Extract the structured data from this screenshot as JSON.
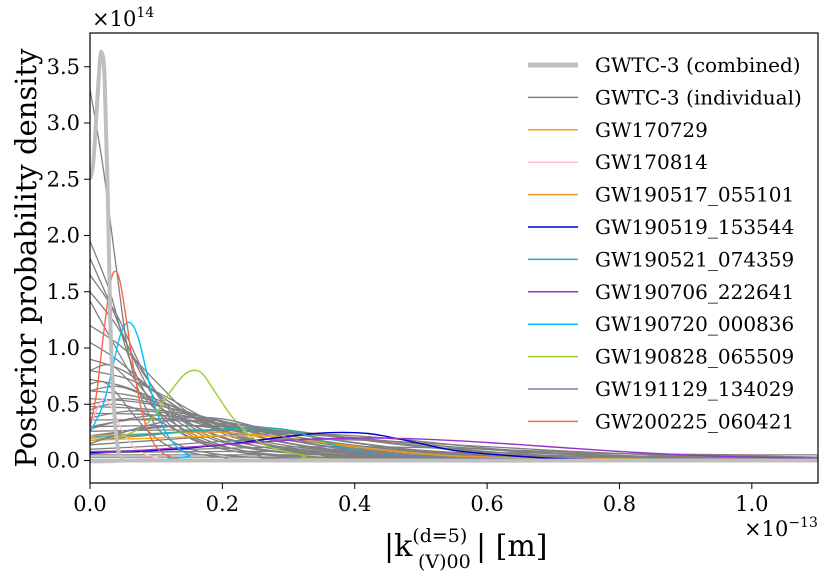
{
  "chart_data": {
    "type": "line",
    "xlabel": "|k",
    "xlabel_sup": "(d=5)",
    "xlabel_sub": "(V)00",
    "xlabel_unit": "| [m]",
    "ylabel": "Posterior probability density",
    "x_scale_label": "×10",
    "x_scale_exp": "−13",
    "y_scale_label": "×10",
    "y_scale_exp": "14",
    "xlim": [
      0,
      1.1
    ],
    "ylim": [
      -0.2,
      3.8
    ],
    "xticks": [
      0.0,
      0.2,
      0.4,
      0.6,
      0.8,
      1.0
    ],
    "xtick_labels": [
      "0.0",
      "0.2",
      "0.4",
      "0.6",
      "0.8",
      "1.0"
    ],
    "yticks": [
      0.0,
      0.5,
      1.0,
      1.5,
      2.0,
      2.5,
      3.0,
      3.5
    ],
    "ytick_labels": [
      "0.0",
      "0.5",
      "1.0",
      "1.5",
      "2.0",
      "2.5",
      "3.0",
      "3.5"
    ],
    "grid": false,
    "legend_position": "top-right",
    "legend": [
      {
        "name": "GWTC-3 (combined)",
        "color": "#bfbfbf",
        "width": 5
      },
      {
        "name": "GWTC-3 (individual)",
        "color": "#808080",
        "width": 1.5
      },
      {
        "name": "GW170729",
        "color": "#ffa500",
        "width": 1.5
      },
      {
        "name": "GW170814",
        "color": "#ffc0cb",
        "width": 1.5
      },
      {
        "name": "GW190517_055101",
        "color": "#e69a2e",
        "width": 1.5
      },
      {
        "name": "GW190519_153544",
        "color": "#0000cd",
        "width": 1.5
      },
      {
        "name": "GW190521_074359",
        "color": "#20b2aa",
        "width": 1.5
      },
      {
        "name": "GW190706_222641",
        "color": "#9932cc",
        "width": 1.5
      },
      {
        "name": "GW190720_000836",
        "color": "#00bfff",
        "width": 1.5
      },
      {
        "name": "GW190828_065509",
        "color": "#9acd32",
        "width": 1.5
      },
      {
        "name": "GW191129_134029",
        "color": "#7b7ba8",
        "width": 1.5
      },
      {
        "name": "GW200225_060421",
        "color": "#ff6347",
        "width": 1.5
      }
    ],
    "combined": {
      "color": "#bfbfbf",
      "x": [
        0,
        0.005,
        0.01,
        0.015,
        0.018,
        0.022,
        0.027,
        0.032,
        0.04,
        0.05,
        0.07,
        1.1
      ],
      "y": [
        2.5,
        2.65,
        3.1,
        3.55,
        3.62,
        3.4,
        2.3,
        1.0,
        0.2,
        0.01,
        0.0,
        0.0
      ]
    },
    "individual": [
      {
        "x": [
          0,
          0.02,
          0.04,
          0.06,
          0.09,
          0.13,
          0.2,
          0.3,
          0.45,
          0.6,
          1.1
        ],
        "y": [
          3.3,
          2.6,
          1.7,
          0.9,
          0.4,
          0.15,
          0.05,
          0.02,
          0.01,
          0.0,
          0.0
        ]
      },
      {
        "x": [
          0,
          0.03,
          0.06,
          0.1,
          0.15,
          0.22,
          0.32,
          0.45,
          0.6,
          1.1
        ],
        "y": [
          1.95,
          1.5,
          0.9,
          0.45,
          0.2,
          0.08,
          0.03,
          0.01,
          0.0,
          0.0
        ]
      },
      {
        "x": [
          0,
          0.03,
          0.07,
          0.11,
          0.16,
          0.24,
          0.35,
          0.5,
          1.1
        ],
        "y": [
          1.8,
          1.4,
          0.85,
          0.45,
          0.2,
          0.08,
          0.03,
          0.01,
          0.0
        ]
      },
      {
        "x": [
          0,
          0.04,
          0.08,
          0.12,
          0.18,
          0.26,
          0.38,
          0.55,
          1.1
        ],
        "y": [
          1.65,
          1.3,
          0.8,
          0.45,
          0.22,
          0.1,
          0.04,
          0.01,
          0.0
        ]
      },
      {
        "x": [
          0,
          0.04,
          0.08,
          0.13,
          0.2,
          0.3,
          0.42,
          0.6,
          1.1
        ],
        "y": [
          1.5,
          1.2,
          0.78,
          0.42,
          0.2,
          0.09,
          0.04,
          0.01,
          0.0
        ]
      },
      {
        "x": [
          0,
          0.03,
          0.07,
          0.12,
          0.18,
          0.26,
          0.38,
          0.55,
          1.1
        ],
        "y": [
          1.42,
          1.1,
          0.7,
          0.4,
          0.2,
          0.09,
          0.04,
          0.01,
          0.0
        ]
      },
      {
        "x": [
          0,
          0.05,
          0.1,
          0.15,
          0.22,
          0.3,
          0.42,
          0.6,
          1.1
        ],
        "y": [
          1.2,
          1.0,
          0.7,
          0.42,
          0.22,
          0.1,
          0.04,
          0.01,
          0.0
        ]
      },
      {
        "x": [
          0,
          0.04,
          0.09,
          0.15,
          0.22,
          0.32,
          0.45,
          0.6,
          1.1
        ],
        "y": [
          1.05,
          0.9,
          0.65,
          0.4,
          0.2,
          0.1,
          0.04,
          0.01,
          0.0
        ]
      },
      {
        "x": [
          0,
          0.05,
          0.1,
          0.16,
          0.24,
          0.34,
          0.48,
          0.65,
          1.1
        ],
        "y": [
          0.9,
          0.8,
          0.6,
          0.38,
          0.2,
          0.1,
          0.04,
          0.01,
          0.0
        ]
      },
      {
        "x": [
          0,
          0.06,
          0.12,
          0.18,
          0.26,
          0.36,
          0.5,
          0.7,
          1.1
        ],
        "y": [
          0.8,
          0.72,
          0.55,
          0.36,
          0.2,
          0.1,
          0.04,
          0.01,
          0.0
        ]
      },
      {
        "x": [
          0,
          0.05,
          0.11,
          0.18,
          0.27,
          0.38,
          0.52,
          0.7,
          1.1
        ],
        "y": [
          0.72,
          0.66,
          0.52,
          0.34,
          0.19,
          0.09,
          0.04,
          0.01,
          0.0
        ]
      },
      {
        "x": [
          0,
          0.06,
          0.13,
          0.2,
          0.3,
          0.42,
          0.56,
          0.75,
          1.1
        ],
        "y": [
          0.62,
          0.58,
          0.47,
          0.32,
          0.18,
          0.09,
          0.04,
          0.01,
          0.0
        ]
      },
      {
        "x": [
          0,
          0.07,
          0.14,
          0.22,
          0.32,
          0.44,
          0.6,
          0.8,
          1.1
        ],
        "y": [
          0.55,
          0.52,
          0.44,
          0.31,
          0.18,
          0.09,
          0.04,
          0.01,
          0.0
        ]
      },
      {
        "x": [
          0,
          0.08,
          0.16,
          0.24,
          0.34,
          0.46,
          0.62,
          0.82,
          1.1
        ],
        "y": [
          0.48,
          0.46,
          0.4,
          0.3,
          0.18,
          0.1,
          0.04,
          0.01,
          0.0
        ]
      },
      {
        "x": [
          0,
          0.08,
          0.17,
          0.26,
          0.36,
          0.48,
          0.64,
          0.85,
          1.1
        ],
        "y": [
          0.42,
          0.41,
          0.37,
          0.29,
          0.19,
          0.1,
          0.05,
          0.02,
          0.0
        ]
      },
      {
        "x": [
          0,
          0.1,
          0.2,
          0.3,
          0.4,
          0.52,
          0.68,
          0.88,
          1.1
        ],
        "y": [
          0.36,
          0.36,
          0.33,
          0.27,
          0.19,
          0.11,
          0.05,
          0.02,
          0.0
        ]
      },
      {
        "x": [
          0,
          0.1,
          0.2,
          0.3,
          0.42,
          0.55,
          0.7,
          0.9,
          1.1
        ],
        "y": [
          0.3,
          0.31,
          0.3,
          0.26,
          0.19,
          0.12,
          0.06,
          0.02,
          0.01
        ]
      },
      {
        "x": [
          0,
          0.1,
          0.2,
          0.3,
          0.42,
          0.55,
          0.72,
          0.9,
          1.1
        ],
        "y": [
          0.26,
          0.27,
          0.27,
          0.24,
          0.19,
          0.12,
          0.06,
          0.03,
          0.01
        ]
      },
      {
        "x": [
          0,
          0.03,
          0.06,
          0.1,
          0.15,
          0.22,
          0.3,
          0.45,
          1.1
        ],
        "y": [
          0.8,
          0.85,
          0.7,
          0.45,
          0.25,
          0.1,
          0.04,
          0.01,
          0.0
        ]
      },
      {
        "x": [
          0,
          0.04,
          0.08,
          0.12,
          0.18,
          0.26,
          0.36,
          0.5,
          1.1
        ],
        "y": [
          0.62,
          0.66,
          0.58,
          0.42,
          0.25,
          0.12,
          0.05,
          0.01,
          0.0
        ]
      },
      {
        "x": [
          0,
          0.05,
          0.1,
          0.15,
          0.2,
          0.28,
          0.38,
          0.55,
          1.1
        ],
        "y": [
          0.5,
          0.55,
          0.5,
          0.4,
          0.26,
          0.13,
          0.05,
          0.01,
          0.0
        ]
      },
      {
        "x": [
          0,
          0.06,
          0.12,
          0.18,
          0.25,
          0.34,
          0.46,
          0.62,
          1.1
        ],
        "y": [
          0.38,
          0.44,
          0.42,
          0.35,
          0.25,
          0.14,
          0.06,
          0.02,
          0.0
        ]
      },
      {
        "x": [
          0,
          0.06,
          0.13,
          0.2,
          0.28,
          0.38,
          0.5,
          0.68,
          1.1
        ],
        "y": [
          0.3,
          0.36,
          0.37,
          0.32,
          0.24,
          0.15,
          0.07,
          0.02,
          0.0
        ]
      },
      {
        "x": [
          0,
          0.08,
          0.15,
          0.22,
          0.3,
          0.4,
          0.52,
          0.7,
          1.1
        ],
        "y": [
          0.22,
          0.28,
          0.31,
          0.3,
          0.24,
          0.16,
          0.08,
          0.03,
          0.01
        ]
      },
      {
        "x": [
          0,
          0.08,
          0.16,
          0.25,
          0.35,
          0.45,
          0.58,
          0.75,
          1.1
        ],
        "y": [
          0.18,
          0.22,
          0.26,
          0.27,
          0.23,
          0.16,
          0.09,
          0.03,
          0.01
        ]
      },
      {
        "x": [
          0,
          0.1,
          0.2,
          0.3,
          0.4,
          0.5,
          0.62,
          0.8,
          1.1
        ],
        "y": [
          0.14,
          0.18,
          0.22,
          0.24,
          0.22,
          0.17,
          0.1,
          0.04,
          0.01
        ]
      },
      {
        "x": [
          0,
          0.1,
          0.2,
          0.3,
          0.42,
          0.55,
          0.7,
          0.9,
          1.1
        ],
        "y": [
          0.1,
          0.13,
          0.17,
          0.19,
          0.18,
          0.14,
          0.09,
          0.04,
          0.02
        ]
      },
      {
        "x": [
          0,
          0.15,
          0.3,
          0.45,
          0.6,
          0.75,
          0.9,
          1.1
        ],
        "y": [
          0.08,
          0.1,
          0.12,
          0.12,
          0.1,
          0.07,
          0.05,
          0.03
        ]
      },
      {
        "x": [
          0,
          0.2,
          0.4,
          0.6,
          0.8,
          1.0,
          1.1
        ],
        "y": [
          0.07,
          0.08,
          0.08,
          0.07,
          0.06,
          0.05,
          0.05
        ]
      },
      {
        "x": [
          0,
          0.2,
          0.4,
          0.6,
          0.8,
          1.0,
          1.1
        ],
        "y": [
          0.05,
          0.05,
          0.05,
          0.04,
          0.04,
          0.03,
          0.03
        ]
      },
      {
        "x": [
          0,
          0.2,
          0.4,
          0.6,
          0.8,
          1.1
        ],
        "y": [
          0.03,
          0.03,
          0.03,
          0.02,
          0.02,
          0.02
        ]
      },
      {
        "x": [
          0,
          0.02,
          0.04,
          0.06,
          0.09,
          0.13,
          0.2,
          0.3,
          1.1
        ],
        "y": [
          0.68,
          0.7,
          0.6,
          0.45,
          0.25,
          0.1,
          0.03,
          0.01,
          0.0
        ]
      },
      {
        "x": [
          0,
          0.03,
          0.06,
          0.09,
          0.13,
          0.18,
          0.25,
          0.35,
          1.1
        ],
        "y": [
          0.45,
          0.5,
          0.48,
          0.4,
          0.27,
          0.14,
          0.05,
          0.01,
          0.0
        ]
      },
      {
        "x": [
          0,
          0.05,
          0.1,
          0.14,
          0.19,
          0.25,
          0.33,
          0.45,
          1.1
        ],
        "y": [
          0.28,
          0.36,
          0.4,
          0.37,
          0.28,
          0.16,
          0.07,
          0.02,
          0.0
        ]
      },
      {
        "x": [
          0,
          0.05,
          0.1,
          0.15,
          0.21,
          0.28,
          0.37,
          0.5,
          1.1
        ],
        "y": [
          0.2,
          0.26,
          0.3,
          0.31,
          0.27,
          0.18,
          0.08,
          0.02,
          0.0
        ]
      }
    ],
    "events": [
      {
        "name": "GW170729",
        "color": "#ffa500",
        "x": [
          0,
          0.05,
          0.1,
          0.15,
          0.2,
          0.25,
          0.3,
          0.35,
          0.45,
          0.55,
          0.7,
          0.9,
          1.1
        ],
        "y": [
          0.18,
          0.19,
          0.2,
          0.21,
          0.22,
          0.22,
          0.2,
          0.16,
          0.09,
          0.04,
          0.02,
          0.01,
          0.0
        ]
      },
      {
        "name": "GW170814",
        "color": "#ffc0cb",
        "x": [
          0,
          0.01,
          0.02,
          0.03,
          0.04,
          0.05,
          0.07,
          0.1,
          0.15,
          1.1
        ],
        "y": [
          0.3,
          0.45,
          0.55,
          0.5,
          0.38,
          0.25,
          0.1,
          0.03,
          0.0,
          0.0
        ]
      },
      {
        "name": "GW190517_055101",
        "color": "#e69a2e",
        "x": [
          0,
          0.05,
          0.1,
          0.15,
          0.2,
          0.25,
          0.3,
          0.35,
          0.4,
          0.5,
          0.6,
          0.8,
          1.1
        ],
        "y": [
          0.22,
          0.23,
          0.24,
          0.25,
          0.25,
          0.23,
          0.2,
          0.16,
          0.12,
          0.06,
          0.03,
          0.01,
          0.0
        ]
      },
      {
        "name": "GW190519_153544",
        "color": "#0000cd",
        "x": [
          0,
          0.1,
          0.2,
          0.28,
          0.34,
          0.38,
          0.42,
          0.46,
          0.5,
          0.55,
          0.62,
          0.7,
          0.8,
          1.1
        ],
        "y": [
          0.07,
          0.09,
          0.14,
          0.2,
          0.24,
          0.25,
          0.24,
          0.2,
          0.15,
          0.09,
          0.05,
          0.02,
          0.01,
          0.0
        ]
      },
      {
        "name": "GW190521_074359",
        "color": "#20b2aa",
        "x": [
          0,
          0.05,
          0.1,
          0.15,
          0.2,
          0.24,
          0.27,
          0.3,
          0.34,
          0.38,
          0.45,
          0.55,
          0.7,
          1.1
        ],
        "y": [
          0.2,
          0.22,
          0.24,
          0.26,
          0.28,
          0.29,
          0.29,
          0.27,
          0.2,
          0.12,
          0.05,
          0.02,
          0.01,
          0.0
        ]
      },
      {
        "name": "GW190706_222641",
        "color": "#9932cc",
        "x": [
          0,
          0.1,
          0.2,
          0.3,
          0.4,
          0.5,
          0.6,
          0.7,
          0.8,
          0.9,
          1.0,
          1.1
        ],
        "y": [
          0.06,
          0.1,
          0.14,
          0.18,
          0.2,
          0.19,
          0.16,
          0.12,
          0.08,
          0.05,
          0.03,
          0.02
        ]
      },
      {
        "name": "GW190720_000836",
        "color": "#00bfff",
        "x": [
          0,
          0.02,
          0.035,
          0.045,
          0.055,
          0.065,
          0.075,
          0.085,
          0.1,
          0.12,
          0.15,
          0.2,
          1.1
        ],
        "y": [
          0.25,
          0.5,
          0.85,
          1.1,
          1.22,
          1.2,
          1.05,
          0.8,
          0.45,
          0.2,
          0.05,
          0.01,
          0.0
        ]
      },
      {
        "name": "GW190828_065509",
        "color": "#9acd32",
        "x": [
          0,
          0.05,
          0.09,
          0.12,
          0.14,
          0.155,
          0.17,
          0.19,
          0.22,
          0.26,
          0.32,
          0.4,
          1.1
        ],
        "y": [
          0.2,
          0.22,
          0.35,
          0.6,
          0.75,
          0.8,
          0.77,
          0.6,
          0.35,
          0.15,
          0.05,
          0.01,
          0.0
        ]
      },
      {
        "name": "GW191129_134029",
        "color": "#7b7ba8",
        "x": [
          0,
          0.05,
          0.1,
          0.15,
          0.2,
          0.25,
          0.3,
          0.4,
          0.5,
          0.7,
          1.1
        ],
        "y": [
          0.15,
          0.25,
          0.33,
          0.38,
          0.37,
          0.3,
          0.2,
          0.08,
          0.03,
          0.01,
          0.0
        ]
      },
      {
        "name": "GW200225_060421",
        "color": "#ff6347",
        "x": [
          0,
          0.01,
          0.02,
          0.03,
          0.037,
          0.045,
          0.055,
          0.065,
          0.08,
          0.1,
          0.13,
          0.18,
          1.1
        ],
        "y": [
          0.3,
          0.6,
          1.1,
          1.55,
          1.68,
          1.6,
          1.25,
          0.85,
          0.4,
          0.12,
          0.02,
          0.0,
          0.0
        ]
      }
    ]
  }
}
